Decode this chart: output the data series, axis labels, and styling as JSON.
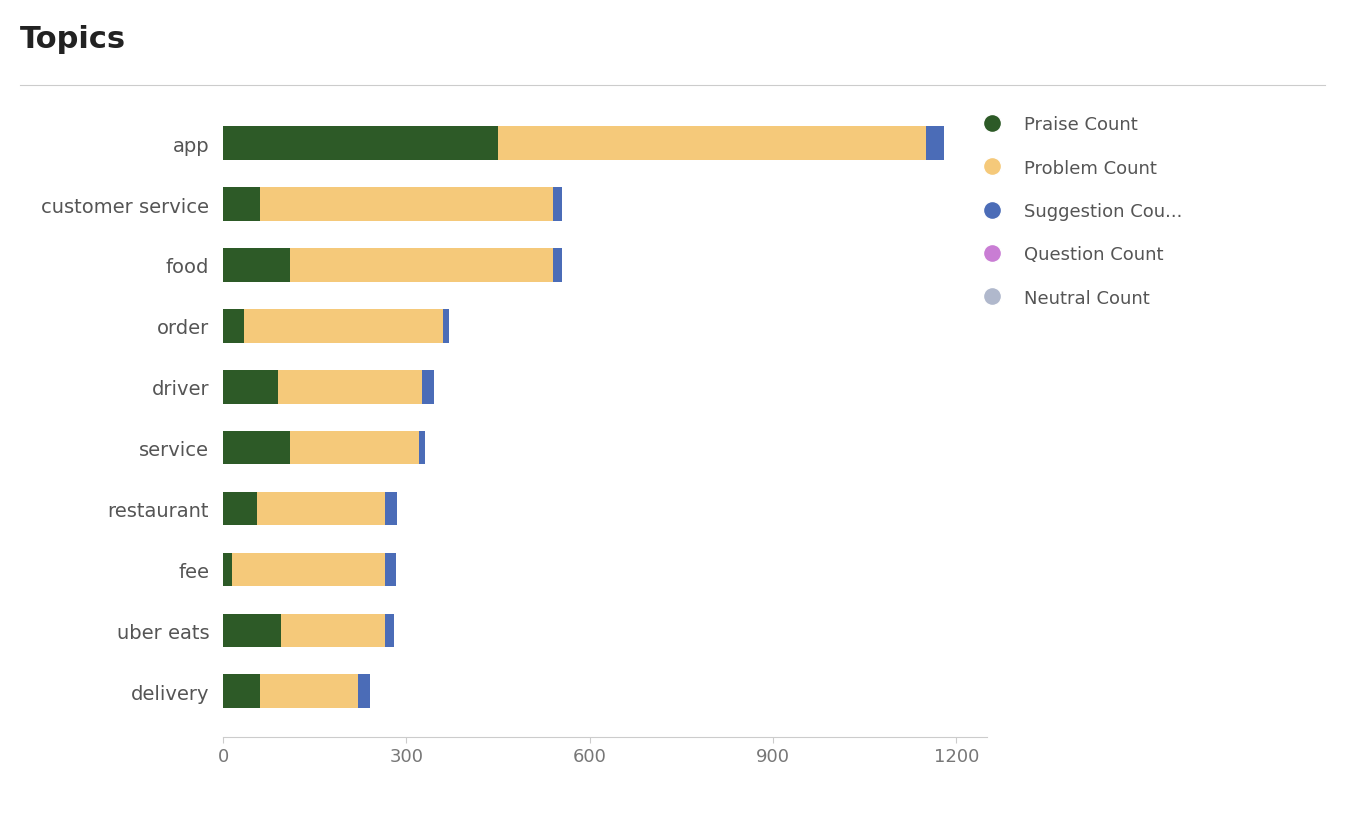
{
  "categories": [
    "app",
    "customer service",
    "food",
    "order",
    "driver",
    "service",
    "restaurant",
    "fee",
    "uber eats",
    "delivery"
  ],
  "praise": [
    450,
    60,
    110,
    35,
    90,
    110,
    55,
    15,
    95,
    60
  ],
  "problem": [
    700,
    480,
    430,
    325,
    235,
    210,
    210,
    250,
    170,
    160
  ],
  "suggestion": [
    30,
    15,
    15,
    10,
    20,
    10,
    20,
    18,
    15,
    20
  ],
  "question": [
    0,
    0,
    0,
    0,
    0,
    0,
    0,
    0,
    0,
    0
  ],
  "neutral": [
    0,
    0,
    0,
    0,
    0,
    0,
    0,
    0,
    0,
    0
  ],
  "praise_color": "#2d5a27",
  "problem_color": "#f5c97a",
  "suggestion_color": "#4b6cb7",
  "question_color": "#c97dd4",
  "neutral_color": "#b0b8cc",
  "title": "Topics",
  "title_fontsize": 22,
  "title_fontweight": "bold",
  "xlim": [
    0,
    1250
  ],
  "xticks": [
    0,
    300,
    600,
    900,
    1200
  ],
  "background_color": "#ffffff",
  "bar_height": 0.55,
  "legend_labels": [
    "Praise Count",
    "Problem Count",
    "Suggestion Cou...",
    "Question Count",
    "Neutral Count"
  ]
}
